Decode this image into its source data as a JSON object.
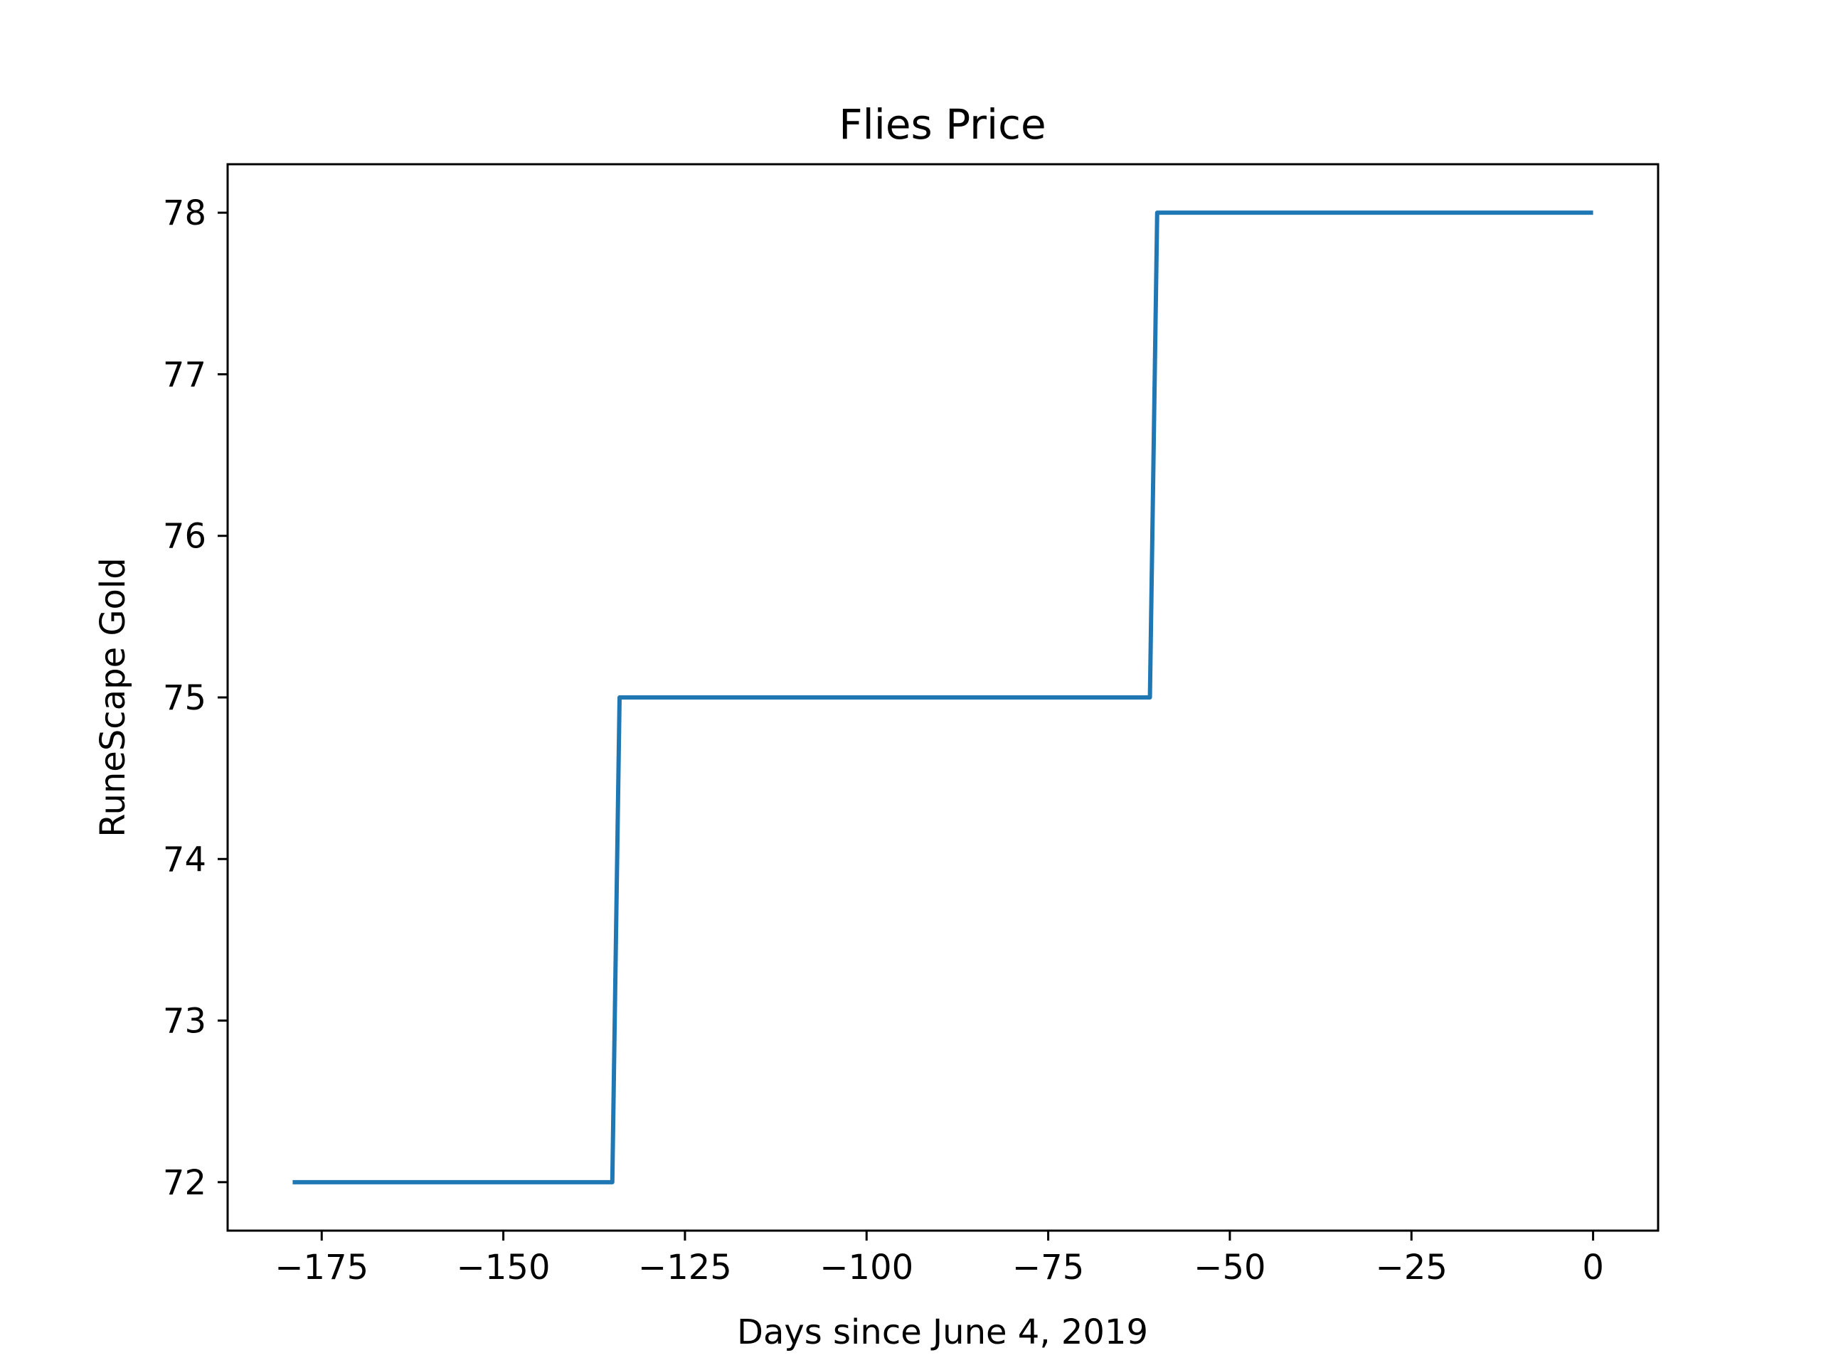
{
  "chart_data": {
    "type": "line",
    "title": "Flies Price",
    "xlabel": "Days since June 4, 2019",
    "ylabel": "RuneScape Gold",
    "x": [
      -179,
      -135,
      -134,
      -61,
      -60,
      0
    ],
    "series": [
      {
        "values": [
          72,
          72,
          75,
          75,
          78,
          78
        ],
        "color": "#1f77b4"
      }
    ],
    "xlim": [
      -187.95,
      8.95
    ],
    "ylim": [
      71.7,
      78.3
    ],
    "xticks": [
      -175,
      -150,
      -125,
      -100,
      -75,
      -50,
      -25,
      0
    ],
    "xtick_labels": [
      "−175",
      "−150",
      "−125",
      "−100",
      "−75",
      "−50",
      "−25",
      "0"
    ],
    "yticks": [
      72,
      73,
      74,
      75,
      76,
      77,
      78
    ],
    "ytick_labels": [
      "72",
      "73",
      "74",
      "75",
      "76",
      "77",
      "78"
    ],
    "grid": false,
    "legend": "none"
  }
}
